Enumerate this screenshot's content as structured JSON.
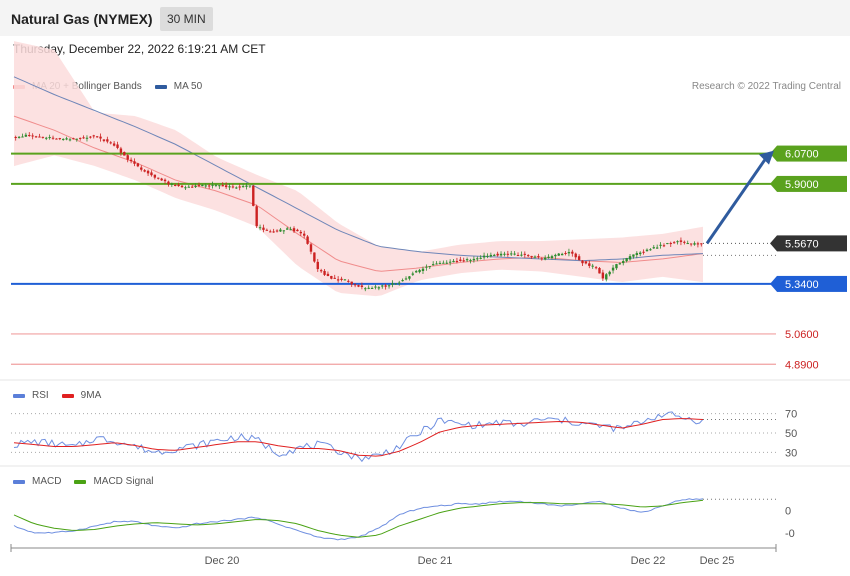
{
  "header": {
    "instrument": "Natural Gas (NYMEX)",
    "timeframe": "30 MIN",
    "datetime": "Thursday, December 22, 2022 6:19:21 AM CET",
    "credit": "Research © 2022 Trading Central"
  },
  "legends": {
    "main": [
      {
        "label": "MA 20 + Bollinger Bands",
        "color": "#f28b8b"
      },
      {
        "label": "MA 50",
        "color": "#2f5b9e"
      }
    ],
    "rsi": [
      {
        "label": "RSI",
        "color": "#5b7fd9"
      },
      {
        "label": "9MA",
        "color": "#e02020"
      }
    ],
    "macd": [
      {
        "label": "MACD",
        "color": "#5b7fd9"
      },
      {
        "label": "MACD Signal",
        "color": "#4aa214"
      }
    ]
  },
  "colors": {
    "up_candle": "#2e8b2e",
    "down_candle": "#cc2222",
    "resistance": "#5aa21e",
    "support": "#1f5fd6",
    "pivot_lower": "#f0a0a0",
    "current": "#333333",
    "arrow": "#2f5b9e",
    "bollinger_fill": "#fbdcdc"
  },
  "chart_data": [
    {
      "type": "candlestick",
      "ylim": [
        4.83,
        6.37
      ],
      "x_ticks": [
        "Dec 20",
        "Dec 21",
        "Dec 22",
        "Dec 25"
      ],
      "levels": [
        {
          "value": 6.07,
          "label": "6.0700",
          "kind": "resistance"
        },
        {
          "value": 5.9,
          "label": "5.9000",
          "kind": "resistance"
        },
        {
          "value": 5.567,
          "label": "5.5670",
          "kind": "current"
        },
        {
          "value": 5.34,
          "label": "5.3400",
          "kind": "support"
        },
        {
          "value": 5.06,
          "label": "5.0600",
          "kind": "lower"
        },
        {
          "value": 4.89,
          "label": "4.8900",
          "kind": "lower"
        }
      ],
      "anchors": [
        [
          0,
          6.16
        ],
        [
          4,
          6.17
        ],
        [
          10,
          6.16
        ],
        [
          14,
          6.15
        ],
        [
          18,
          6.15
        ],
        [
          24,
          6.17
        ],
        [
          30,
          6.12
        ],
        [
          34,
          6.04
        ],
        [
          38,
          5.98
        ],
        [
          42,
          5.94
        ],
        [
          46,
          5.9
        ],
        [
          50,
          5.88
        ],
        [
          54,
          5.89
        ],
        [
          60,
          5.89
        ],
        [
          66,
          5.88
        ],
        [
          70,
          5.89
        ],
        [
          72,
          5.66
        ],
        [
          76,
          5.63
        ],
        [
          82,
          5.65
        ],
        [
          86,
          5.61
        ],
        [
          90,
          5.42
        ],
        [
          94,
          5.37
        ],
        [
          98,
          5.36
        ],
        [
          104,
          5.31
        ],
        [
          110,
          5.33
        ],
        [
          114,
          5.35
        ],
        [
          118,
          5.4
        ],
        [
          124,
          5.45
        ],
        [
          130,
          5.47
        ],
        [
          136,
          5.48
        ],
        [
          140,
          5.5
        ],
        [
          146,
          5.51
        ],
        [
          152,
          5.5
        ],
        [
          156,
          5.48
        ],
        [
          160,
          5.5
        ],
        [
          164,
          5.52
        ],
        [
          168,
          5.46
        ],
        [
          172,
          5.43
        ],
        [
          174,
          5.37
        ],
        [
          178,
          5.45
        ],
        [
          184,
          5.51
        ],
        [
          190,
          5.55
        ],
        [
          196,
          5.58
        ],
        [
          200,
          5.56
        ],
        [
          203,
          5.567
        ]
      ],
      "ma50": [
        6.5,
        6.4,
        6.31,
        6.22,
        6.12,
        6.0,
        5.88,
        5.76,
        5.64,
        5.55,
        5.52,
        5.5,
        5.49,
        5.48,
        5.47,
        5.48,
        5.5,
        5.51
      ],
      "ma20": [
        6.28,
        6.2,
        6.1,
        6.02,
        5.92,
        5.86,
        5.78,
        5.62,
        5.47,
        5.41,
        5.43,
        5.46,
        5.48,
        5.49,
        5.47,
        5.46,
        5.48,
        5.51
      ],
      "bollinger_upper": [
        6.7,
        6.65,
        6.3,
        6.28,
        6.2,
        6.05,
        5.95,
        5.86,
        5.68,
        5.55,
        5.52,
        5.56,
        5.58,
        5.58,
        5.59,
        5.6,
        5.62,
        5.66
      ],
      "bollinger_lower": [
        6.0,
        6.06,
        6.0,
        5.92,
        5.82,
        5.75,
        5.66,
        5.44,
        5.29,
        5.27,
        5.36,
        5.4,
        5.42,
        5.41,
        5.38,
        5.35,
        5.38,
        5.35
      ]
    },
    {
      "type": "line",
      "name": "RSI",
      "y_ticks": [
        70,
        50,
        30
      ],
      "ylim": [
        20,
        80
      ],
      "rsi": [
        38,
        41,
        39,
        35,
        45,
        42,
        36,
        30,
        34,
        37,
        42,
        46,
        43,
        29,
        34,
        38,
        32,
        24,
        27,
        36,
        50,
        63,
        59,
        58,
        61,
        58,
        64,
        63,
        60,
        57,
        54,
        62,
        70,
        66,
        62
      ],
      "ma": [
        40,
        38,
        36,
        36,
        38,
        40,
        37,
        33,
        32,
        35,
        38,
        41,
        41,
        37,
        34,
        34,
        32,
        27,
        26,
        31,
        40,
        51,
        56,
        58,
        59,
        60,
        61,
        62,
        61,
        58,
        55,
        59,
        64,
        65,
        64
      ]
    },
    {
      "type": "line",
      "name": "MACD",
      "y_ticks": [
        0,
        -0.1
      ],
      "y_tick_labels": [
        "0",
        "-0"
      ],
      "ylim": [
        -0.15,
        0.1
      ],
      "macd": [
        -0.07,
        -0.1,
        -0.1,
        -0.09,
        -0.07,
        -0.05,
        -0.05,
        -0.07,
        -0.08,
        -0.06,
        -0.05,
        -0.04,
        -0.03,
        -0.06,
        -0.09,
        -0.12,
        -0.13,
        -0.12,
        -0.08,
        -0.02,
        0.01,
        0.02,
        0.03,
        0.03,
        0.04,
        0.04,
        0.03,
        0.02,
        0.03,
        0.04,
        0.01,
        -0.01,
        0.02,
        0.05,
        0.05
      ],
      "signal": [
        -0.02,
        -0.06,
        -0.08,
        -0.09,
        -0.085,
        -0.07,
        -0.06,
        -0.055,
        -0.06,
        -0.065,
        -0.06,
        -0.05,
        -0.04,
        -0.045,
        -0.06,
        -0.09,
        -0.11,
        -0.12,
        -0.11,
        -0.07,
        -0.04,
        -0.01,
        0.01,
        0.02,
        0.03,
        0.035,
        0.035,
        0.03,
        0.03,
        0.03,
        0.025,
        0.015,
        0.02,
        0.035,
        0.045
      ]
    }
  ]
}
